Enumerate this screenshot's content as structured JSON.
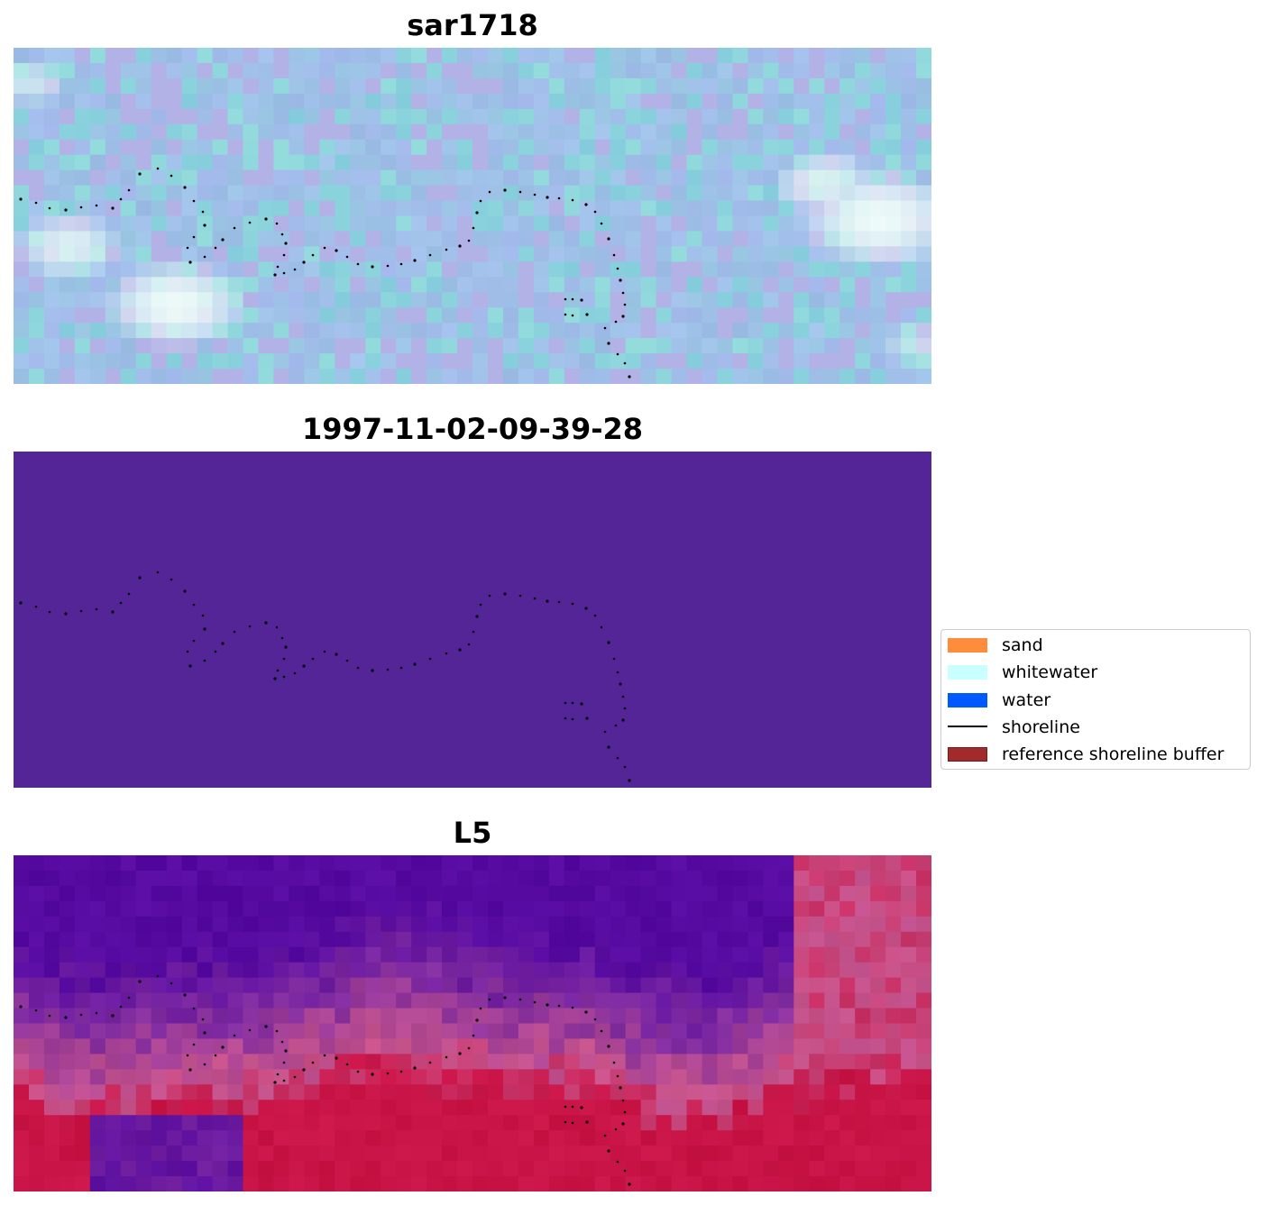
{
  "panels": [
    {
      "title": "sar1718",
      "style": "rgb"
    },
    {
      "title": "1997-11-02-09-39-28",
      "style": "classification",
      "fill": "#532597"
    },
    {
      "title": "L5",
      "style": "ndwi"
    }
  ],
  "legend": {
    "items": [
      {
        "label": "sand",
        "kind": "patch",
        "color": "#ff8c3a"
      },
      {
        "label": "whitewater",
        "kind": "patch",
        "color": "#c8ffff"
      },
      {
        "label": "water",
        "kind": "patch",
        "color": "#0059ff"
      },
      {
        "label": "shoreline",
        "kind": "line",
        "color": "#000000"
      },
      {
        "label": "reference shoreline buffer",
        "kind": "patch",
        "color": "#a12b2b",
        "edge": "#7a1a1a"
      }
    ]
  }
}
